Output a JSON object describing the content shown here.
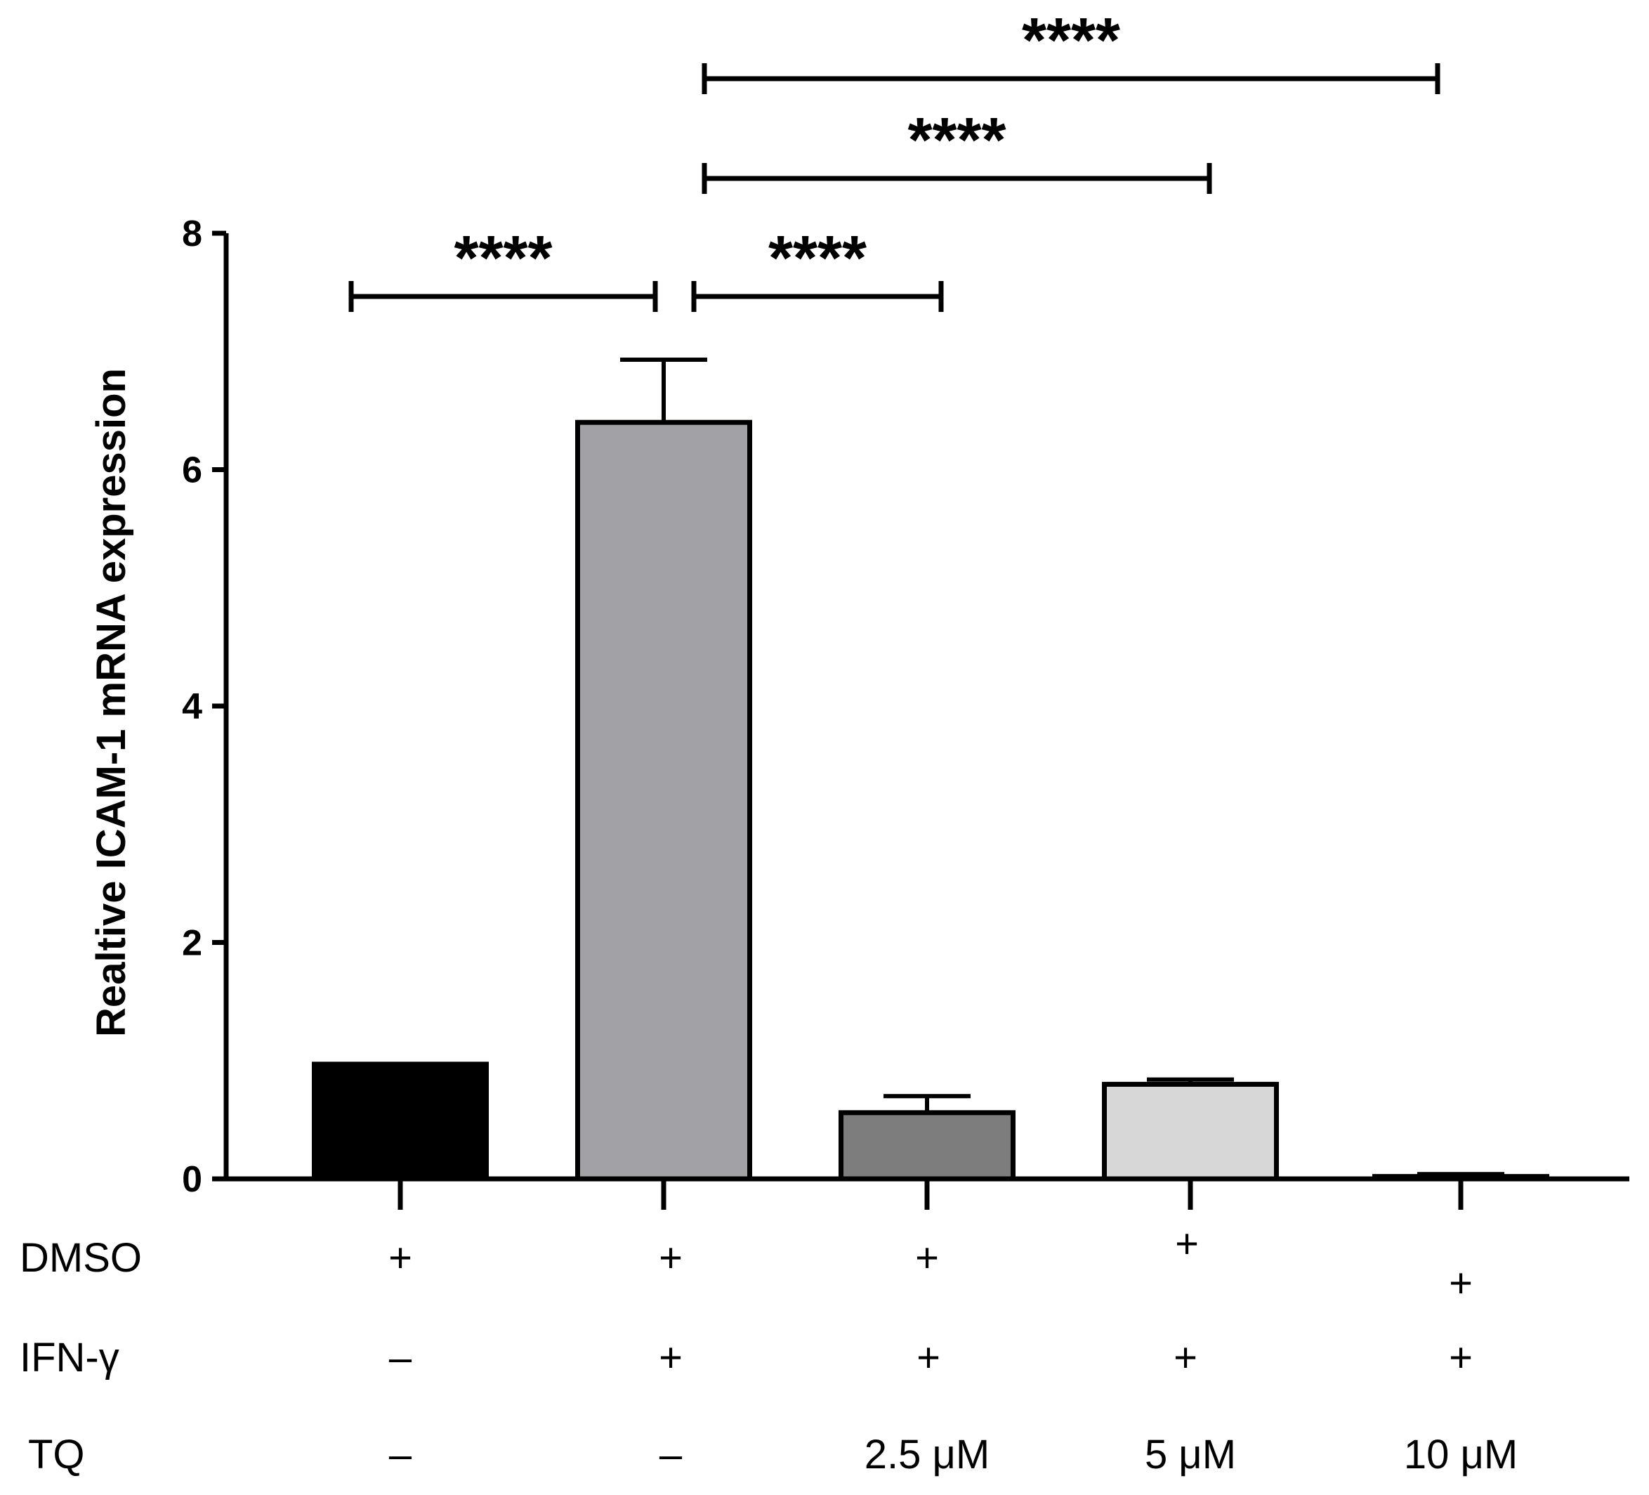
{
  "chart_data": {
    "type": "bar",
    "title": "",
    "xlabel": "",
    "ylabel": "Realtive ICAM-1 mRNA expression",
    "ylim": [
      0,
      8
    ],
    "yticks": [
      "0",
      "2",
      "4",
      "6",
      "8"
    ],
    "grid": false,
    "bars": [
      {
        "value": 0.97,
        "error": 0.0,
        "color": "#000000"
      },
      {
        "value": 6.4,
        "error": 0.53,
        "color": "#a2a1a6"
      },
      {
        "value": 0.56,
        "error": 0.14,
        "color": "#7d7d7d"
      },
      {
        "value": 0.8,
        "error": 0.04,
        "color": "#d7d7d7"
      },
      {
        "value": 0.02,
        "error": 0.02,
        "color": "#ffffff"
      }
    ],
    "treatments": [
      {
        "label": "DMSO",
        "values": [
          "+",
          "+",
          "+",
          "+",
          "+"
        ]
      },
      {
        "label": "IFN-γ",
        "values": [
          "–",
          "+",
          "+",
          "+",
          "+"
        ]
      },
      {
        "label": "TQ",
        "values": [
          "–",
          "–",
          "2.5 μM",
          "5 μM",
          "10 μM"
        ]
      }
    ],
    "significance": [
      {
        "from": 0,
        "to": 1,
        "label": "****"
      },
      {
        "from": 1,
        "to": 2,
        "label": "****"
      },
      {
        "from": 1,
        "to": 3,
        "label": "****"
      },
      {
        "from": 1,
        "to": 4,
        "label": "****"
      }
    ]
  }
}
